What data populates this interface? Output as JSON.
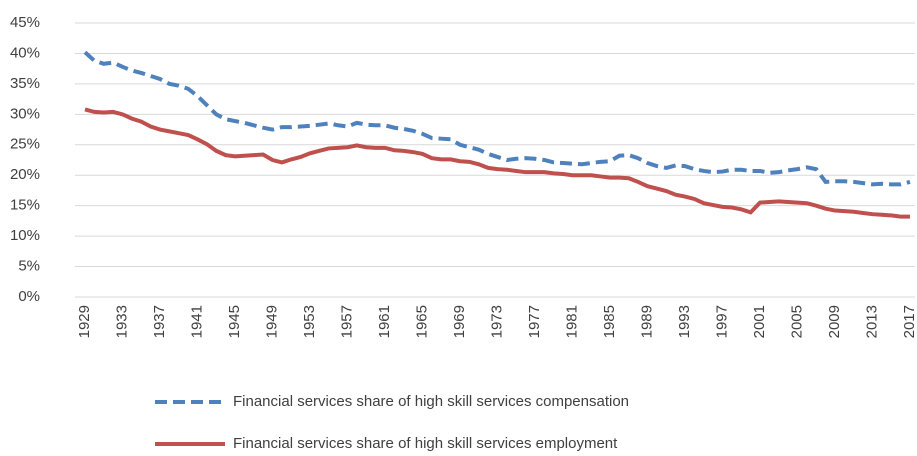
{
  "chart_data": {
    "type": "line",
    "x": [
      1929,
      1930,
      1931,
      1932,
      1933,
      1934,
      1935,
      1936,
      1937,
      1938,
      1939,
      1940,
      1941,
      1942,
      1943,
      1944,
      1945,
      1946,
      1947,
      1948,
      1949,
      1950,
      1951,
      1952,
      1953,
      1954,
      1955,
      1956,
      1957,
      1958,
      1959,
      1960,
      1961,
      1962,
      1963,
      1964,
      1965,
      1966,
      1967,
      1968,
      1969,
      1970,
      1971,
      1972,
      1973,
      1974,
      1975,
      1976,
      1977,
      1978,
      1979,
      1980,
      1981,
      1982,
      1983,
      1984,
      1985,
      1986,
      1987,
      1988,
      1989,
      1990,
      1991,
      1992,
      1993,
      1994,
      1995,
      1996,
      1997,
      1998,
      1999,
      2000,
      2001,
      2002,
      2003,
      2004,
      2005,
      2006,
      2007,
      2008,
      2009,
      2010,
      2011,
      2012,
      2013,
      2014,
      2015,
      2016,
      2017
    ],
    "series": [
      {
        "name": "Financial services share of high skill services compensation",
        "color": "#4f81bd",
        "dash": "dashed",
        "values": [
          40.2,
          38.8,
          38.3,
          38.5,
          37.8,
          37.2,
          36.8,
          36.3,
          35.8,
          35.0,
          34.7,
          34.2,
          33.0,
          31.5,
          30.0,
          29.2,
          28.9,
          28.6,
          28.2,
          27.8,
          27.5,
          27.9,
          27.9,
          28.0,
          28.1,
          28.3,
          28.5,
          28.2,
          28.0,
          28.6,
          28.3,
          28.2,
          28.2,
          27.8,
          27.6,
          27.3,
          26.8,
          26.1,
          26.0,
          25.9,
          25.0,
          24.6,
          24.2,
          23.5,
          23.0,
          22.5,
          22.7,
          22.8,
          22.7,
          22.5,
          22.1,
          22.0,
          21.9,
          21.8,
          22.0,
          22.2,
          22.3,
          23.2,
          23.3,
          22.8,
          22.0,
          21.5,
          21.2,
          21.6,
          21.5,
          21.0,
          20.7,
          20.5,
          20.6,
          20.9,
          20.9,
          20.7,
          20.7,
          20.4,
          20.5,
          20.8,
          21.0,
          21.3,
          21.0,
          18.9,
          19.0,
          19.0,
          18.9,
          18.7,
          18.5,
          18.6,
          18.5,
          18.5,
          18.9
        ]
      },
      {
        "name": "Financial services share of high skill services employment",
        "color": "#c0504d",
        "dash": "solid",
        "values": [
          30.8,
          30.4,
          30.3,
          30.4,
          30.0,
          29.3,
          28.8,
          28.0,
          27.5,
          27.2,
          26.9,
          26.6,
          25.9,
          25.1,
          24.0,
          23.3,
          23.1,
          23.2,
          23.3,
          23.4,
          22.5,
          22.1,
          22.6,
          23.0,
          23.6,
          24.0,
          24.4,
          24.5,
          24.6,
          24.9,
          24.6,
          24.5,
          24.5,
          24.1,
          24.0,
          23.8,
          23.5,
          22.8,
          22.6,
          22.6,
          22.3,
          22.2,
          21.8,
          21.2,
          21.0,
          20.9,
          20.7,
          20.5,
          20.5,
          20.5,
          20.3,
          20.2,
          20.0,
          20.0,
          20.0,
          19.8,
          19.6,
          19.6,
          19.5,
          18.9,
          18.2,
          17.8,
          17.4,
          16.8,
          16.5,
          16.1,
          15.4,
          15.1,
          14.8,
          14.7,
          14.4,
          13.9,
          15.5,
          15.6,
          15.7,
          15.6,
          15.5,
          15.4,
          15.0,
          14.5,
          14.2,
          14.1,
          14.0,
          13.8,
          13.6,
          13.5,
          13.4,
          13.2,
          13.2
        ]
      }
    ],
    "xlim": [
      1929,
      2017
    ],
    "xticks": [
      1929,
      1933,
      1937,
      1941,
      1945,
      1949,
      1953,
      1957,
      1961,
      1965,
      1969,
      1973,
      1977,
      1981,
      1985,
      1989,
      1993,
      1997,
      2001,
      2005,
      2009,
      2013,
      2017
    ],
    "ylim": [
      0,
      45
    ],
    "yticks": [
      {
        "value": 0,
        "label": "0%"
      },
      {
        "value": 5,
        "label": "5%"
      },
      {
        "value": 10,
        "label": "10%"
      },
      {
        "value": 15,
        "label": "15%"
      },
      {
        "value": 20,
        "label": "20%"
      },
      {
        "value": 25,
        "label": "25%"
      },
      {
        "value": 30,
        "label": "30%"
      },
      {
        "value": 35,
        "label": "35%"
      },
      {
        "value": 40,
        "label": "40%"
      },
      {
        "value": 45,
        "label": "45%"
      }
    ],
    "grid": true,
    "legend": "bottom"
  }
}
